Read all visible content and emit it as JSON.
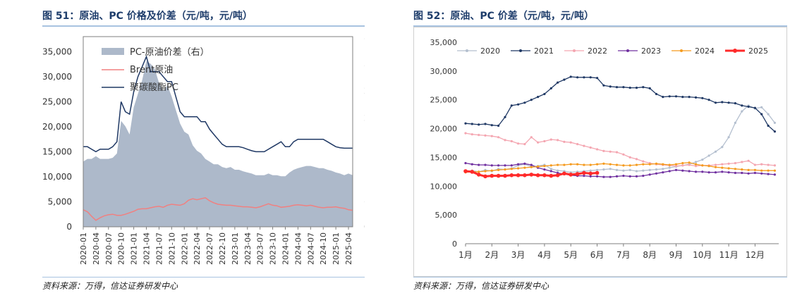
{
  "figures": [
    {
      "title": "图 51：原油、PC 价格及价差（元/吨，元/吨）",
      "source": "资料来源：万得，信达证券研发中心"
    },
    {
      "title": "图 52：原油、PC 价差（元/吨，元/吨）",
      "source": "资料来源：万得，信达证券研发中心"
    }
  ],
  "chart_data": [
    {
      "type": "area",
      "x": [
        "2020-01",
        "2020-02",
        "2020-03",
        "2020-04",
        "2020-05",
        "2020-06",
        "2020-07",
        "2020-08",
        "2020-09",
        "2020-10",
        "2020-11",
        "2020-12",
        "2021-01",
        "2021-02",
        "2021-03",
        "2021-04",
        "2021-05",
        "2021-06",
        "2021-07",
        "2021-08",
        "2021-09",
        "2021-10",
        "2021-11",
        "2021-12",
        "2022-01",
        "2022-02",
        "2022-03",
        "2022-04",
        "2022-05",
        "2022-06",
        "2022-07",
        "2022-08",
        "2022-09",
        "2022-10",
        "2022-11",
        "2022-12",
        "2023-01",
        "2023-02",
        "2023-03",
        "2023-04",
        "2023-05",
        "2023-06",
        "2023-07",
        "2023-08",
        "2023-09",
        "2023-10",
        "2023-11",
        "2023-12",
        "2024-01",
        "2024-02",
        "2024-03",
        "2024-04",
        "2024-05",
        "2024-06",
        "2024-07",
        "2024-08",
        "2024-09",
        "2024-10",
        "2024-11",
        "2024-12",
        "2025-01",
        "2025-02",
        "2025-03",
        "2025-04",
        "2025-05"
      ],
      "x_tick_labels": [
        "2020-01",
        "2020-04",
        "2020-07",
        "2020-10",
        "2021-01",
        "2021-04",
        "2021-07",
        "2021-10",
        "2022-01",
        "2022-04",
        "2022-07",
        "2022-10",
        "2023-01",
        "2023-04",
        "2023-07",
        "2023-10",
        "2024-01",
        "2024-04",
        "2024-07",
        "2024-10",
        "2025-01",
        "2025-04"
      ],
      "series": [
        {
          "name": "PC-原油价差（右）",
          "axis": "right",
          "type": "area",
          "color": "#adb9ca",
          "values": [
            12000,
            12500,
            12500,
            13000,
            12500,
            12500,
            12500,
            12700,
            13500,
            19500,
            18500,
            17000,
            22000,
            24500,
            27000,
            30500,
            30000,
            29000,
            26500,
            25000,
            26000,
            24000,
            21500,
            19000,
            17500,
            17000,
            15000,
            14000,
            13500,
            12500,
            12000,
            11500,
            11500,
            11000,
            10800,
            11000,
            10500,
            10500,
            10200,
            10000,
            9800,
            9500,
            9500,
            9500,
            9800,
            9500,
            9500,
            9300,
            9300,
            10000,
            10500,
            10800,
            11000,
            11200,
            11200,
            11000,
            10800,
            10800,
            10500,
            10300,
            10000,
            9800,
            9500,
            9800,
            9500
          ]
        },
        {
          "name": "Brent原油",
          "axis": "left",
          "type": "line",
          "color": "#f08080",
          "values": [
            3400,
            3000,
            2100,
            1300,
            1800,
            2200,
            2400,
            2500,
            2300,
            2300,
            2500,
            2800,
            3100,
            3500,
            3600,
            3600,
            3800,
            4000,
            4100,
            3900,
            4300,
            4500,
            4400,
            4300,
            4600,
            5300,
            5600,
            5400,
            5600,
            5800,
            5200,
            4800,
            4500,
            4400,
            4300,
            4300,
            4200,
            4100,
            4000,
            4000,
            3900,
            3800,
            4000,
            4300,
            4600,
            4300,
            4200,
            3900,
            4000,
            4100,
            4300,
            4400,
            4300,
            4200,
            4300,
            4100,
            3900,
            3800,
            3900,
            3900,
            4000,
            3800,
            3700,
            3400,
            3300
          ]
        },
        {
          "name": "聚碳酸酯PC",
          "axis": "left",
          "type": "line",
          "color": "#1f3864",
          "values": [
            16000,
            16000,
            15500,
            15000,
            15500,
            15500,
            15500,
            16000,
            17000,
            25000,
            23000,
            22500,
            27000,
            30000,
            32000,
            34000,
            31000,
            31000,
            31000,
            30000,
            29000,
            29000,
            26000,
            23000,
            22000,
            22000,
            22000,
            22000,
            21000,
            21000,
            19500,
            18500,
            17500,
            16500,
            16000,
            16000,
            16000,
            16000,
            15800,
            15500,
            15200,
            15000,
            15000,
            15000,
            15500,
            16000,
            16500,
            17000,
            16000,
            16000,
            17000,
            17500,
            17500,
            17500,
            17500,
            17500,
            17500,
            17500,
            17000,
            16500,
            16000,
            15800,
            15700,
            15700,
            15700
          ]
        }
      ],
      "left_axis": {
        "ylim": [
          0,
          38000
        ],
        "ticks": [
          "0",
          "5,000",
          "10,000",
          "15,000",
          "20,000",
          "25,000",
          "30,000",
          "35,000"
        ]
      },
      "right_axis": {
        "ylim": [
          0,
          35000
        ],
        "ticks": [
          "0",
          "5,000",
          "10,000",
          "15,000",
          "20,000",
          "25,000",
          "30,000",
          "35,000"
        ]
      },
      "legend_placement": "top-left",
      "grid": false
    },
    {
      "type": "line",
      "categories": [
        "1月",
        "2月",
        "3月",
        "4月",
        "5月",
        "6月",
        "7月",
        "8月",
        "9月",
        "10月",
        "11月",
        "12月"
      ],
      "ylim": [
        0,
        35000
      ],
      "y_ticks": [
        "0",
        "5,000",
        "10,000",
        "15,000",
        "20,000",
        "25,000",
        "30,000",
        "35,000"
      ],
      "legend_placement": "top",
      "grid": false,
      "series": [
        {
          "name": "2020",
          "color": "#b4bfcf",
          "x": [
            1,
            1.25,
            1.5,
            1.75,
            2,
            2.25,
            2.5,
            2.75,
            3,
            3.25,
            3.5,
            3.75,
            4,
            4.25,
            4.5,
            4.75,
            5,
            5.25,
            5.5,
            5.75,
            6,
            6.25,
            6.5,
            6.75,
            7,
            7.25,
            7.5,
            7.75,
            8,
            8.25,
            8.5,
            8.75,
            9,
            9.25,
            9.5,
            9.75,
            10,
            10.25,
            10.5,
            10.75,
            11,
            11.25,
            11.5,
            11.75,
            12,
            12.25,
            12.5,
            12.75
          ],
          "y": [
            12500,
            12700,
            12500,
            12800,
            12600,
            13000,
            12900,
            13100,
            13600,
            13800,
            13400,
            13500,
            13700,
            13000,
            12700,
            12600,
            12400,
            12500,
            12600,
            12700,
            12800,
            12900,
            13000,
            12800,
            12700,
            12800,
            12600,
            12700,
            12800,
            12900,
            13000,
            13200,
            13400,
            13600,
            13800,
            14200,
            14600,
            15300,
            16000,
            16800,
            18500,
            21000,
            23000,
            24000,
            23500,
            23700,
            22500,
            21000
          ]
        },
        {
          "name": "2021",
          "color": "#1f3864",
          "x": [
            1,
            1.25,
            1.5,
            1.75,
            2,
            2.25,
            2.5,
            2.75,
            3,
            3.25,
            3.5,
            3.75,
            4,
            4.25,
            4.5,
            4.75,
            5,
            5.25,
            5.5,
            5.75,
            6,
            6.25,
            6.5,
            6.75,
            7,
            7.25,
            7.5,
            7.75,
            8,
            8.25,
            8.5,
            8.75,
            9,
            9.25,
            9.5,
            9.75,
            10,
            10.25,
            10.5,
            10.75,
            11,
            11.25,
            11.5,
            11.75,
            12,
            12.25,
            12.5,
            12.75
          ],
          "y": [
            20900,
            20800,
            20700,
            20800,
            20600,
            20500,
            22000,
            24000,
            24200,
            24500,
            25000,
            25500,
            26000,
            27000,
            28000,
            28500,
            29000,
            28900,
            28900,
            28900,
            28800,
            27500,
            27300,
            27200,
            27200,
            27100,
            27100,
            27200,
            27000,
            26000,
            25500,
            25600,
            25600,
            25500,
            25500,
            25400,
            25300,
            25000,
            24500,
            24600,
            24500,
            24400,
            24000,
            23800,
            23600,
            22500,
            20500,
            19500
          ]
        },
        {
          "name": "2022",
          "color": "#f4a6b1",
          "x": [
            1,
            1.25,
            1.5,
            1.75,
            2,
            2.25,
            2.5,
            2.75,
            3,
            3.25,
            3.5,
            3.75,
            4,
            4.25,
            4.5,
            4.75,
            5,
            5.25,
            5.5,
            5.75,
            6,
            6.25,
            6.5,
            6.75,
            7,
            7.25,
            7.5,
            7.75,
            8,
            8.25,
            8.5,
            8.75,
            9,
            9.25,
            9.5,
            9.75,
            10,
            10.25,
            10.5,
            10.75,
            11,
            11.25,
            11.5,
            11.75,
            12,
            12.25,
            12.5,
            12.75
          ],
          "y": [
            19200,
            19000,
            18900,
            18800,
            18700,
            18500,
            18000,
            17800,
            17400,
            17300,
            18500,
            17600,
            17800,
            18100,
            18000,
            17700,
            17600,
            17300,
            17000,
            16700,
            16400,
            16100,
            16000,
            15900,
            15500,
            15000,
            14700,
            14300,
            14000,
            13800,
            13700,
            13600,
            13500,
            13600,
            13700,
            13500,
            13600,
            13600,
            13700,
            13800,
            13900,
            14000,
            14200,
            14400,
            13700,
            13800,
            13700,
            13600
          ]
        },
        {
          "name": "2023",
          "color": "#7030a0",
          "x": [
            1,
            1.25,
            1.5,
            1.75,
            2,
            2.25,
            2.5,
            2.75,
            3,
            3.25,
            3.5,
            3.75,
            4,
            4.25,
            4.5,
            4.75,
            5,
            5.25,
            5.5,
            5.75,
            6,
            6.25,
            6.5,
            6.75,
            7,
            7.25,
            7.5,
            7.75,
            8,
            8.25,
            8.5,
            8.75,
            9,
            9.25,
            9.5,
            9.75,
            10,
            10.25,
            10.5,
            10.75,
            11,
            11.25,
            11.5,
            11.75,
            12,
            12.25,
            12.5,
            12.75
          ],
          "y": [
            14000,
            13800,
            13700,
            13700,
            13600,
            13600,
            13600,
            13600,
            13800,
            13900,
            13700,
            13200,
            12900,
            12600,
            12300,
            12100,
            11900,
            11800,
            11800,
            11700,
            11700,
            11600,
            11600,
            11700,
            11800,
            11700,
            11700,
            11800,
            12000,
            12200,
            12400,
            12600,
            12800,
            12700,
            12600,
            12500,
            12500,
            12400,
            12400,
            12500,
            12400,
            12300,
            12300,
            12200,
            12300,
            12200,
            12100,
            12000
          ]
        },
        {
          "name": "2024",
          "color": "#f59b1f",
          "x": [
            1,
            1.25,
            1.5,
            1.75,
            2,
            2.25,
            2.5,
            2.75,
            3,
            3.25,
            3.5,
            3.75,
            4,
            4.25,
            4.5,
            4.75,
            5,
            5.25,
            5.5,
            5.75,
            6,
            6.25,
            6.5,
            6.75,
            7,
            7.25,
            7.5,
            7.75,
            8,
            8.25,
            8.5,
            8.75,
            9,
            9.25,
            9.5,
            9.75,
            10,
            10.25,
            10.5,
            10.75,
            11,
            11.25,
            11.5,
            11.75,
            12,
            12.25,
            12.5,
            12.75
          ],
          "y": [
            12400,
            12500,
            12500,
            12600,
            12700,
            12800,
            12900,
            13000,
            13100,
            13200,
            13300,
            13400,
            13500,
            13600,
            13700,
            13700,
            13800,
            13800,
            13700,
            13700,
            13800,
            13900,
            13800,
            13700,
            13600,
            13600,
            13700,
            13800,
            13800,
            13900,
            13800,
            13700,
            13800,
            14000,
            14100,
            13800,
            13600,
            13500,
            13300,
            13200,
            13100,
            13000,
            12900,
            12800,
            12800,
            12700,
            12700,
            12700
          ]
        },
        {
          "name": "2025",
          "color": "#ff2a2a",
          "x": [
            1,
            1.25,
            1.5,
            1.75,
            2,
            2.25,
            2.5,
            2.75,
            3,
            3.25,
            3.5,
            3.75,
            4,
            4.25,
            4.5,
            4.75,
            5,
            5.25,
            5.5,
            5.75,
            6
          ],
          "y": [
            12600,
            12500,
            12000,
            11700,
            11800,
            11800,
            11800,
            11900,
            11900,
            11900,
            12000,
            11900,
            11900,
            11800,
            11900,
            12200,
            12000,
            12100,
            12300,
            12200,
            12300
          ]
        }
      ]
    }
  ]
}
